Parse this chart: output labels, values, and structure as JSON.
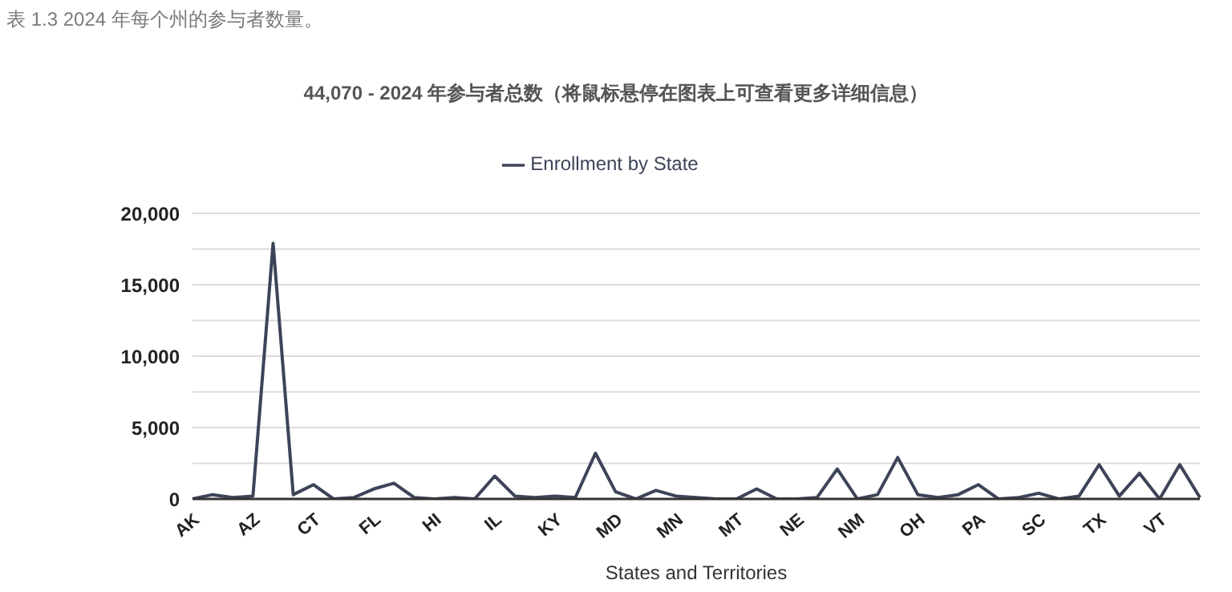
{
  "chart_data": {
    "type": "line",
    "title": "44,070 - 2024 年参与者总数（将鼠标悬停在图表上可查看更多详细信息）",
    "xlabel": "States and Territories",
    "annotations": [
      "表 1.3 2024 年每个州的参与者数量。"
    ],
    "categories": [
      "AK",
      null,
      null,
      "AZ",
      null,
      null,
      "CT",
      null,
      null,
      "FL",
      null,
      null,
      "HI",
      null,
      null,
      "IL",
      null,
      null,
      "KY",
      null,
      null,
      "MD",
      null,
      null,
      "MN",
      null,
      null,
      "MT",
      null,
      null,
      "NE",
      null,
      null,
      "NM",
      null,
      null,
      "OH",
      null,
      null,
      "PA",
      null,
      null,
      "SC",
      null,
      null,
      "TX",
      null,
      null,
      "VT",
      null,
      null
    ],
    "series": [
      {
        "name": "Enrollment by State",
        "color": "#3d4459",
        "values": [
          0,
          300,
          100,
          200,
          17900,
          300,
          1000,
          0,
          100,
          700,
          1100,
          100,
          0,
          100,
          0,
          1600,
          200,
          100,
          200,
          100,
          3200,
          500,
          0,
          600,
          200,
          100,
          0,
          0,
          700,
          0,
          0,
          100,
          2100,
          0,
          300,
          2900,
          300,
          100,
          300,
          1000,
          0,
          100,
          400,
          0,
          200,
          2400,
          200,
          1800,
          0,
          2400,
          100
        ]
      }
    ],
    "ylim": [
      0,
      20000
    ],
    "yticks": [
      0,
      {
        "value": 2500,
        "label": null
      },
      {
        "value": 5000,
        "label": "5,000"
      },
      {
        "value": 7500,
        "label": null
      },
      {
        "value": 10000,
        "label": "10,000"
      },
      {
        "value": 12500,
        "label": null
      },
      {
        "value": 15000,
        "label": "15,000"
      },
      {
        "value": 17500,
        "label": null
      },
      {
        "value": 20000,
        "label": "20,000"
      }
    ],
    "grid": "y",
    "legend": "top",
    "line_style": "solid"
  }
}
